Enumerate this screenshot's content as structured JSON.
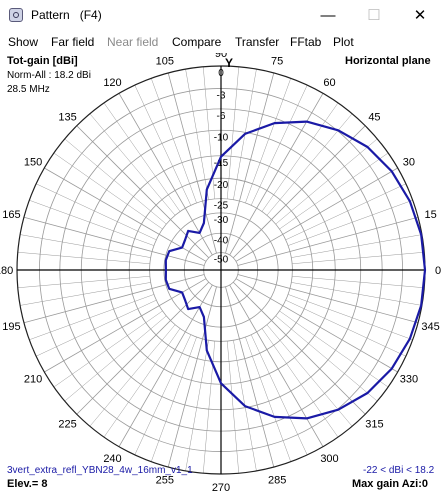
{
  "window": {
    "title": "Pattern   (F4)",
    "minimize_glyph": "—",
    "maximize_glyph": "☐",
    "close_glyph": "✕",
    "icon": "app-icon"
  },
  "menu": [
    {
      "label": "Show",
      "enabled": true
    },
    {
      "label": "Far field",
      "enabled": true
    },
    {
      "label": "Near field",
      "enabled": false
    },
    {
      "label": "Compare",
      "enabled": true
    },
    {
      "label": "Transfer",
      "enabled": true
    },
    {
      "label": "FFtab",
      "enabled": true
    },
    {
      "label": "Plot",
      "enabled": true
    }
  ],
  "plot": {
    "gain_title": "Tot-gain [dBi]",
    "norm": "Norm-All : 18.2 dBi",
    "frequency": "28.5 MHz",
    "plane": "Horizontal plane",
    "axis_label": "Y",
    "file": "3vert_extra_refl_YBN28_4w_16mm_v1_1",
    "elevation": "Elev.= 8",
    "range": "-22 < dBi < 18.2",
    "max_gain": "Max gain Azi:0",
    "pattern_color": "#1a1aa6",
    "grid_color": "#9a9a9a"
  },
  "chart_data": {
    "type": "polar",
    "title": "Tot-gain [dBi]",
    "subtitle": "Horizontal plane",
    "radial_tick_labels": [
      "0",
      "-3",
      "-6",
      "-10",
      "-15",
      "-20",
      "-25",
      "-30",
      "-40",
      "-50"
    ],
    "angle_tick_labels": [
      "0",
      "15",
      "30",
      "45",
      "60",
      "75",
      "90",
      "105",
      "120",
      "135",
      "150",
      "165",
      "180",
      "195",
      "210",
      "225",
      "240",
      "255",
      "270",
      "285",
      "300",
      "315",
      "330",
      "345"
    ],
    "series": [
      {
        "unit": "dB relative to 18.2 dBi",
        "azimuth_deg": [
          0,
          10,
          20,
          30,
          40,
          50,
          60,
          70,
          80,
          90,
          100,
          110,
          120,
          130,
          140,
          150,
          160,
          170,
          180,
          190,
          200,
          210,
          220,
          230,
          240,
          250,
          260,
          270,
          280,
          290,
          300,
          310,
          320,
          330,
          340,
          350
        ],
        "gain_db": [
          0,
          -0.1,
          -0.4,
          -0.9,
          -1.7,
          -2.9,
          -4.5,
          -6.9,
          -10.3,
          -15.2,
          -22.5,
          -33.5,
          -37,
          -33,
          -35,
          -36,
          -31,
          -30.5,
          -31,
          -30.5,
          -31,
          -36,
          -35,
          -33,
          -37,
          -33.5,
          -22.5,
          -15.2,
          -10.3,
          -6.9,
          -4.5,
          -2.9,
          -1.7,
          -0.9,
          -0.4,
          -0.1
        ]
      }
    ]
  }
}
